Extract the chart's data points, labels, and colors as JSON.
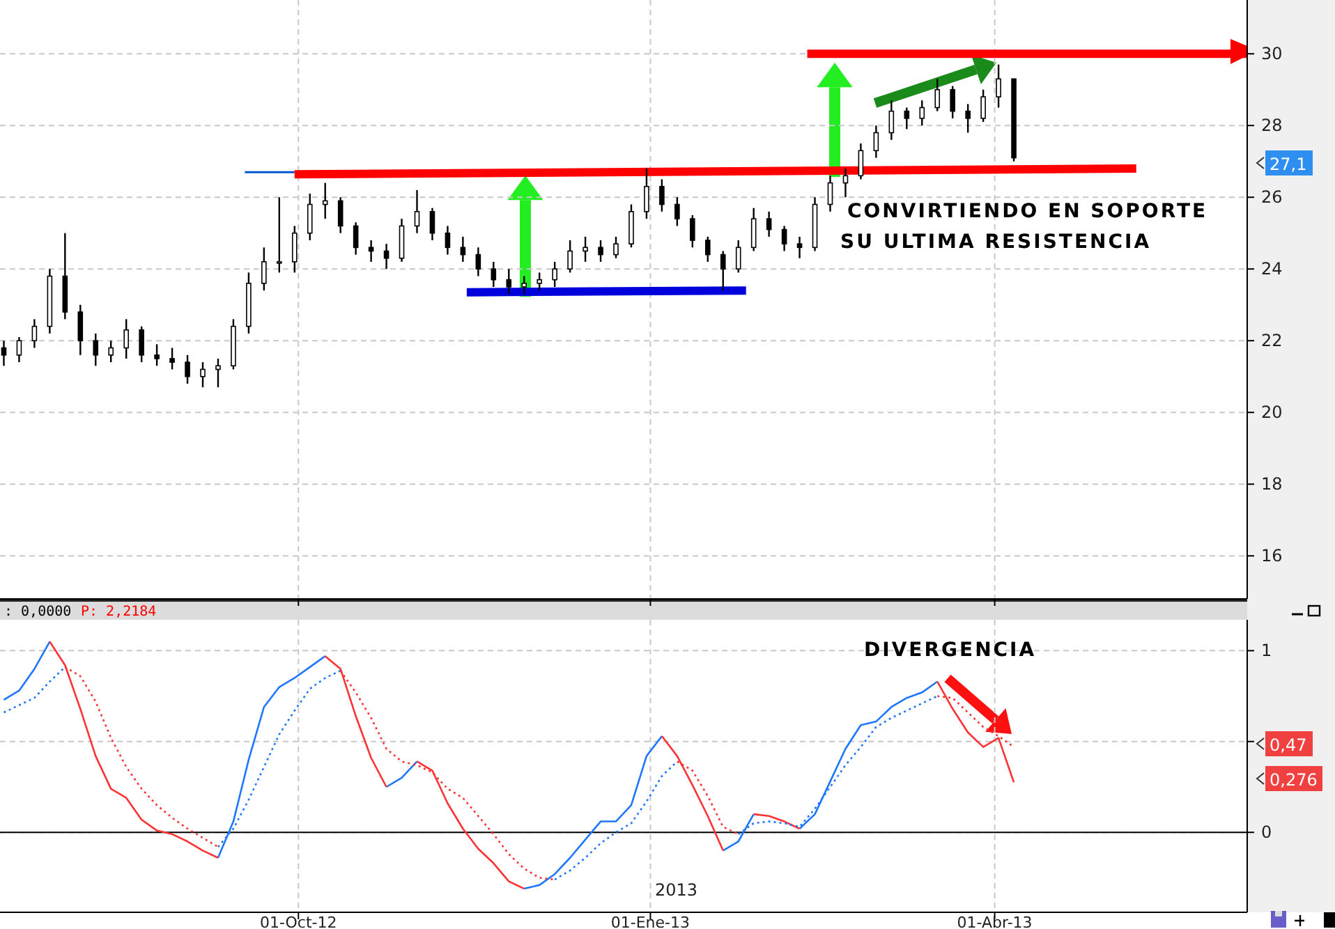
{
  "chart_data": [
    {
      "type": "candlestick",
      "color": "#000000",
      "grid": true,
      "tick_labels": "y",
      "xlim": [
        "2012-07-15",
        "2013-06-06"
      ],
      "ylim": [
        14.8,
        31.5
      ],
      "yticks": [
        16,
        18,
        20,
        22,
        24,
        26,
        28,
        30
      ],
      "xticks": [
        {
          "value": "2012-10-01",
          "label": null
        },
        {
          "value": "2013-01-01",
          "label": null
        },
        {
          "value": "2013-04-01",
          "label": null
        }
      ],
      "x": [
        "2012-07-16",
        "2012-07-20",
        "2012-07-24",
        "2012-07-28",
        "2012-08-01",
        "2012-08-05",
        "2012-08-09",
        "2012-08-13",
        "2012-08-17",
        "2012-08-21",
        "2012-08-25",
        "2012-08-29",
        "2012-09-02",
        "2012-09-06",
        "2012-09-10",
        "2012-09-14",
        "2012-09-18",
        "2012-09-22",
        "2012-09-26",
        "2012-09-30",
        "2012-10-04",
        "2012-10-08",
        "2012-10-12",
        "2012-10-16",
        "2012-10-20",
        "2012-10-24",
        "2012-10-28",
        "2012-11-01",
        "2012-11-05",
        "2012-11-09",
        "2012-11-13",
        "2012-11-17",
        "2012-11-21",
        "2012-11-25",
        "2012-11-29",
        "2012-12-03",
        "2012-12-07",
        "2012-12-11",
        "2012-12-15",
        "2012-12-19",
        "2012-12-23",
        "2012-12-27",
        "2012-12-31",
        "2013-01-04",
        "2013-01-08",
        "2013-01-12",
        "2013-01-16",
        "2013-01-20",
        "2013-01-24",
        "2013-01-28",
        "2013-02-01",
        "2013-02-05",
        "2013-02-09",
        "2013-02-13",
        "2013-02-17",
        "2013-02-21",
        "2013-02-25",
        "2013-03-01",
        "2013-03-05",
        "2013-03-09",
        "2013-03-13",
        "2013-03-17",
        "2013-03-21",
        "2013-03-25",
        "2013-03-29",
        "2013-04-02",
        "2013-04-06"
      ],
      "ohlc": [
        [
          21.8,
          22.0,
          21.3,
          21.6
        ],
        [
          21.6,
          22.1,
          21.4,
          22.0
        ],
        [
          22.0,
          22.6,
          21.8,
          22.4
        ],
        [
          22.4,
          24.0,
          22.2,
          23.8
        ],
        [
          23.8,
          25.0,
          22.6,
          22.8
        ],
        [
          22.8,
          23.0,
          21.6,
          22.0
        ],
        [
          22.0,
          22.2,
          21.3,
          21.6
        ],
        [
          21.6,
          22.0,
          21.4,
          21.8
        ],
        [
          21.8,
          22.6,
          21.5,
          22.3
        ],
        [
          22.3,
          22.4,
          21.4,
          21.6
        ],
        [
          21.6,
          21.9,
          21.3,
          21.5
        ],
        [
          21.5,
          21.8,
          21.2,
          21.4
        ],
        [
          21.4,
          21.6,
          20.8,
          21.0
        ],
        [
          21.0,
          21.4,
          20.7,
          21.2
        ],
        [
          21.2,
          21.5,
          20.7,
          21.3
        ],
        [
          21.3,
          22.6,
          21.2,
          22.4
        ],
        [
          22.4,
          23.9,
          22.2,
          23.6
        ],
        [
          23.6,
          24.6,
          23.4,
          24.2
        ],
        [
          24.2,
          26.0,
          23.9,
          24.2
        ],
        [
          24.2,
          25.2,
          23.9,
          25.0
        ],
        [
          25.0,
          26.1,
          24.8,
          25.8
        ],
        [
          25.8,
          26.4,
          25.4,
          25.9
        ],
        [
          25.9,
          26.0,
          25.0,
          25.2
        ],
        [
          25.2,
          25.3,
          24.4,
          24.6
        ],
        [
          24.6,
          24.8,
          24.2,
          24.5
        ],
        [
          24.5,
          24.7,
          24.0,
          24.3
        ],
        [
          24.3,
          25.4,
          24.2,
          25.2
        ],
        [
          25.2,
          26.2,
          25.0,
          25.6
        ],
        [
          25.6,
          25.7,
          24.8,
          25.0
        ],
        [
          25.0,
          25.2,
          24.4,
          24.6
        ],
        [
          24.6,
          24.9,
          24.2,
          24.4
        ],
        [
          24.4,
          24.6,
          23.8,
          24.0
        ],
        [
          24.0,
          24.2,
          23.5,
          23.7
        ],
        [
          23.7,
          24.0,
          23.3,
          23.5
        ],
        [
          23.5,
          23.8,
          23.3,
          23.6
        ],
        [
          23.6,
          23.9,
          23.4,
          23.7
        ],
        [
          23.7,
          24.2,
          23.5,
          24.0
        ],
        [
          24.0,
          24.8,
          23.9,
          24.5
        ],
        [
          24.5,
          24.9,
          24.2,
          24.6
        ],
        [
          24.6,
          24.8,
          24.2,
          24.4
        ],
        [
          24.4,
          24.9,
          24.3,
          24.7
        ],
        [
          24.7,
          25.8,
          24.6,
          25.6
        ],
        [
          25.6,
          26.8,
          25.4,
          26.3
        ],
        [
          26.3,
          26.5,
          25.6,
          25.8
        ],
        [
          25.8,
          26.0,
          25.2,
          25.4
        ],
        [
          25.4,
          25.5,
          24.6,
          24.8
        ],
        [
          24.8,
          24.9,
          24.2,
          24.4
        ],
        [
          24.4,
          24.5,
          23.4,
          24.0
        ],
        [
          24.0,
          24.8,
          23.9,
          24.6
        ],
        [
          24.6,
          25.7,
          24.5,
          25.4
        ],
        [
          25.4,
          25.6,
          24.9,
          25.1
        ],
        [
          25.1,
          25.2,
          24.5,
          24.7
        ],
        [
          24.7,
          24.9,
          24.3,
          24.6
        ],
        [
          24.6,
          26.0,
          24.5,
          25.8
        ],
        [
          25.8,
          26.6,
          25.6,
          26.4
        ],
        [
          26.4,
          26.8,
          26.0,
          26.6
        ],
        [
          26.6,
          27.5,
          26.5,
          27.3
        ],
        [
          27.3,
          28.0,
          27.1,
          27.8
        ],
        [
          27.8,
          28.7,
          27.6,
          28.4
        ],
        [
          28.4,
          28.5,
          27.9,
          28.2
        ],
        [
          28.2,
          28.7,
          28.0,
          28.5
        ],
        [
          28.5,
          29.3,
          28.4,
          29.0
        ],
        [
          29.0,
          29.1,
          28.2,
          28.4
        ],
        [
          28.4,
          28.6,
          27.8,
          28.2
        ],
        [
          28.2,
          29.0,
          28.1,
          28.8
        ],
        [
          28.8,
          29.7,
          28.5,
          29.3
        ],
        [
          29.3,
          29.3,
          27.0,
          27.1
        ]
      ],
      "series": [
        {
          "type": "line",
          "color": "#0055cc",
          "x": [
            "2012-09-17",
            "2012-09-30"
          ],
          "values": [
            26.7,
            26.7
          ]
        },
        {
          "type": "line",
          "color": "#ff0000",
          "x": [
            "2012-09-30",
            "2013-05-08"
          ],
          "values": [
            26.64,
            26.8
          ]
        },
        {
          "type": "line",
          "color": "#ff0000",
          "x": [
            "2013-02-11",
            "2013-06-06"
          ],
          "values": [
            30.0,
            30.0
          ]
        },
        {
          "type": "line",
          "color": "#0000dd",
          "x": [
            "2012-11-14",
            "2013-01-26"
          ],
          "values": [
            23.35,
            23.4
          ]
        }
      ],
      "annotations": [
        "CONVIRTIENDO EN SOPORTE",
        "SU ULTIMA RESISTENCIA",
        "27,1"
      ]
    },
    {
      "type": "line",
      "grid": true,
      "xlim": [
        "2012-07-15",
        "2013-06-06"
      ],
      "ylim": [
        -0.44,
        1.17
      ],
      "yticks": [
        0,
        {
          "value": 0.5,
          "label": null
        },
        1
      ],
      "xticks": [
        {
          "value": "2012-10-01",
          "label": "01-Oct-12"
        },
        {
          "value": "2013-01-01",
          "label": "01-Ene-13"
        },
        {
          "value": "2013-04-01",
          "label": "01-Abr-13"
        }
      ],
      "x": [
        "2012-07-16",
        "2012-07-20",
        "2012-07-24",
        "2012-07-28",
        "2012-08-01",
        "2012-08-05",
        "2012-08-09",
        "2012-08-13",
        "2012-08-17",
        "2012-08-21",
        "2012-08-25",
        "2012-08-29",
        "2012-09-02",
        "2012-09-06",
        "2012-09-10",
        "2012-09-14",
        "2012-09-18",
        "2012-09-22",
        "2012-09-26",
        "2012-09-30",
        "2012-10-04",
        "2012-10-08",
        "2012-10-12",
        "2012-10-16",
        "2012-10-20",
        "2012-10-24",
        "2012-10-28",
        "2012-11-01",
        "2012-11-05",
        "2012-11-09",
        "2012-11-13",
        "2012-11-17",
        "2012-11-21",
        "2012-11-25",
        "2012-11-29",
        "2012-12-03",
        "2012-12-07",
        "2012-12-11",
        "2012-12-15",
        "2012-12-19",
        "2012-12-23",
        "2012-12-27",
        "2012-12-31",
        "2013-01-04",
        "2013-01-08",
        "2013-01-12",
        "2013-01-16",
        "2013-01-20",
        "2013-01-24",
        "2013-01-28",
        "2013-02-01",
        "2013-02-05",
        "2013-02-09",
        "2013-02-13",
        "2013-02-17",
        "2013-02-21",
        "2013-02-25",
        "2013-03-01",
        "2013-03-05",
        "2013-03-09",
        "2013-03-13",
        "2013-03-17",
        "2013-03-21",
        "2013-03-25",
        "2013-03-29",
        "2013-04-02",
        "2013-04-06"
      ],
      "series": [
        {
          "color": "#1e78ff",
          "line_style": "solid",
          "values": [
            0.73,
            0.78,
            0.9,
            1.05,
            null,
            null,
            null,
            null,
            null,
            null,
            null,
            null,
            null,
            null,
            -0.14,
            0.06,
            0.4,
            0.69,
            0.8,
            0.85,
            0.91,
            0.97,
            null,
            null,
            null,
            0.25,
            0.3,
            0.39,
            null,
            null,
            null,
            null,
            null,
            null,
            -0.31,
            -0.29,
            -0.23,
            -0.14,
            -0.04,
            0.06,
            0.06,
            0.15,
            0.42,
            0.53,
            null,
            null,
            null,
            -0.1,
            -0.05,
            0.1,
            null,
            null,
            0.02,
            0.1,
            0.28,
            0.46,
            0.59,
            0.61,
            0.69,
            0.74,
            0.77,
            0.83,
            null,
            null,
            null,
            null,
            null
          ]
        },
        {
          "color": "#ff3333",
          "line_style": "solid",
          "values": [
            null,
            null,
            null,
            1.05,
            0.92,
            0.68,
            0.42,
            0.24,
            0.19,
            0.07,
            0.01,
            -0.01,
            -0.05,
            -0.1,
            -0.14,
            null,
            null,
            null,
            null,
            null,
            null,
            0.97,
            0.9,
            0.64,
            0.41,
            0.25,
            null,
            0.39,
            0.34,
            0.16,
            0.02,
            -0.09,
            -0.17,
            -0.27,
            -0.31,
            null,
            null,
            null,
            null,
            null,
            null,
            null,
            null,
            0.53,
            0.42,
            0.26,
            0.09,
            -0.1,
            null,
            0.1,
            0.09,
            0.06,
            0.02,
            null,
            null,
            null,
            null,
            null,
            null,
            null,
            null,
            0.83,
            0.68,
            0.55,
            0.47,
            0.52,
            0.276
          ]
        },
        {
          "color": "#1e78ff",
          "line_style": "dotted",
          "values": [
            0.66,
            0.7,
            0.74,
            0.83,
            0.91,
            null,
            null,
            null,
            null,
            null,
            null,
            null,
            null,
            null,
            -0.08,
            0.02,
            0.18,
            0.36,
            0.54,
            0.67,
            0.79,
            0.85,
            0.89,
            null,
            null,
            null,
            null,
            null,
            null,
            null,
            null,
            null,
            null,
            null,
            null,
            null,
            -0.26,
            -0.21,
            -0.14,
            -0.06,
            0.0,
            0.05,
            0.17,
            0.31,
            0.39,
            null,
            null,
            null,
            -0.01,
            0.05,
            0.06,
            0.05,
            0.03,
            0.13,
            0.25,
            0.37,
            0.47,
            0.58,
            0.63,
            0.67,
            0.71,
            0.75,
            null,
            null,
            null,
            null,
            null
          ]
        },
        {
          "color": "#ff3333",
          "line_style": "dotted",
          "values": [
            null,
            null,
            null,
            null,
            0.91,
            0.86,
            0.72,
            0.52,
            0.36,
            0.24,
            0.15,
            0.08,
            0.02,
            -0.03,
            -0.08,
            null,
            null,
            null,
            null,
            null,
            null,
            null,
            0.89,
            0.77,
            0.63,
            0.46,
            0.39,
            0.37,
            0.33,
            0.24,
            0.19,
            0.09,
            -0.01,
            -0.12,
            -0.2,
            -0.25,
            -0.26,
            null,
            null,
            null,
            null,
            null,
            null,
            null,
            0.39,
            0.34,
            0.2,
            0.03,
            -0.01,
            null,
            null,
            null,
            null,
            null,
            null,
            null,
            null,
            null,
            null,
            null,
            null,
            0.75,
            0.74,
            0.66,
            0.58,
            0.53,
            0.47
          ]
        }
      ],
      "ref_lines": [
        {
          "axis": "y",
          "value": 0,
          "color": "#000000"
        }
      ],
      "annotations": [
        ": 0,0000",
        "P: 2,2184",
        "DIVERGENCIA",
        "0,47",
        "0,276",
        "2013"
      ]
    }
  ]
}
